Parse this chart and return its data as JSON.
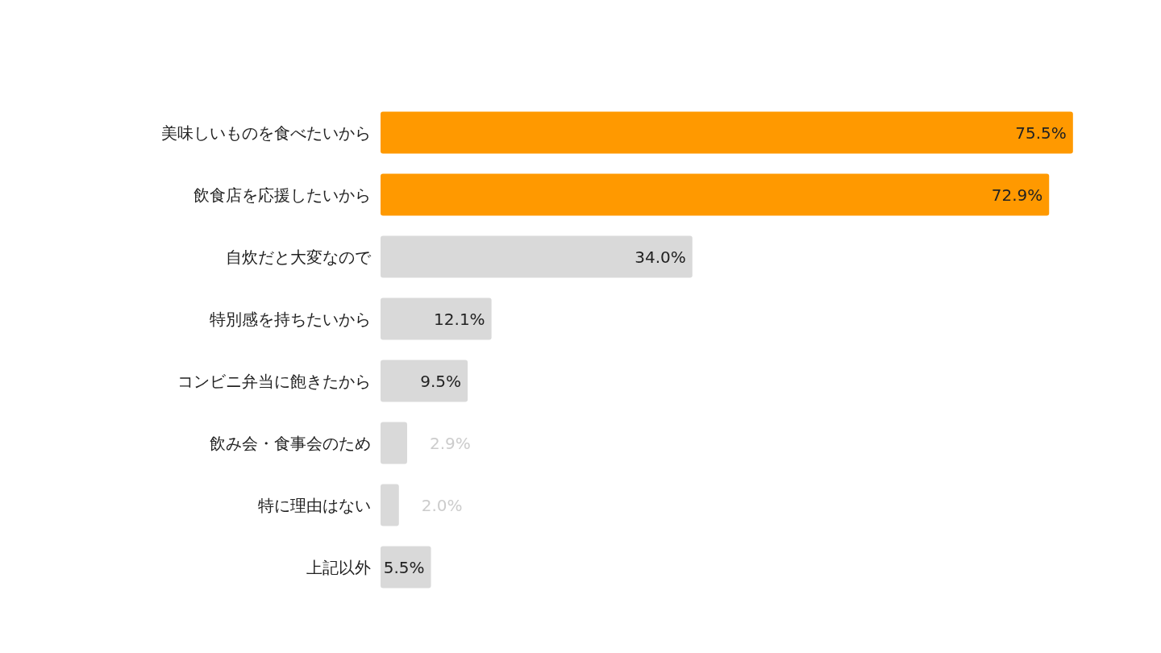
{
  "chart_data": {
    "type": "bar",
    "orientation": "horizontal",
    "categories": [
      "美味しいものを食べたいから",
      "飲食店を応援したいから",
      "自炊だと大変なので",
      "特別感を持ちたいから",
      "コンビニ弁当に飽きたから",
      "飲み会・食事会のため",
      "特に理由はない",
      "上記以外"
    ],
    "values": [
      75.5,
      72.9,
      34.0,
      12.1,
      9.5,
      2.9,
      2.0,
      5.5
    ],
    "colors": [
      "#ff9900",
      "#ff9900",
      "#d9d9d9",
      "#d9d9d9",
      "#d9d9d9",
      "#d9d9d9",
      "#d9d9d9",
      "#d9d9d9"
    ],
    "value_labels": [
      "75.5%",
      "72.9%",
      "34.0%",
      "12.1%",
      "9.5%",
      "2.9%",
      "2.0%",
      "5.5%"
    ]
  }
}
